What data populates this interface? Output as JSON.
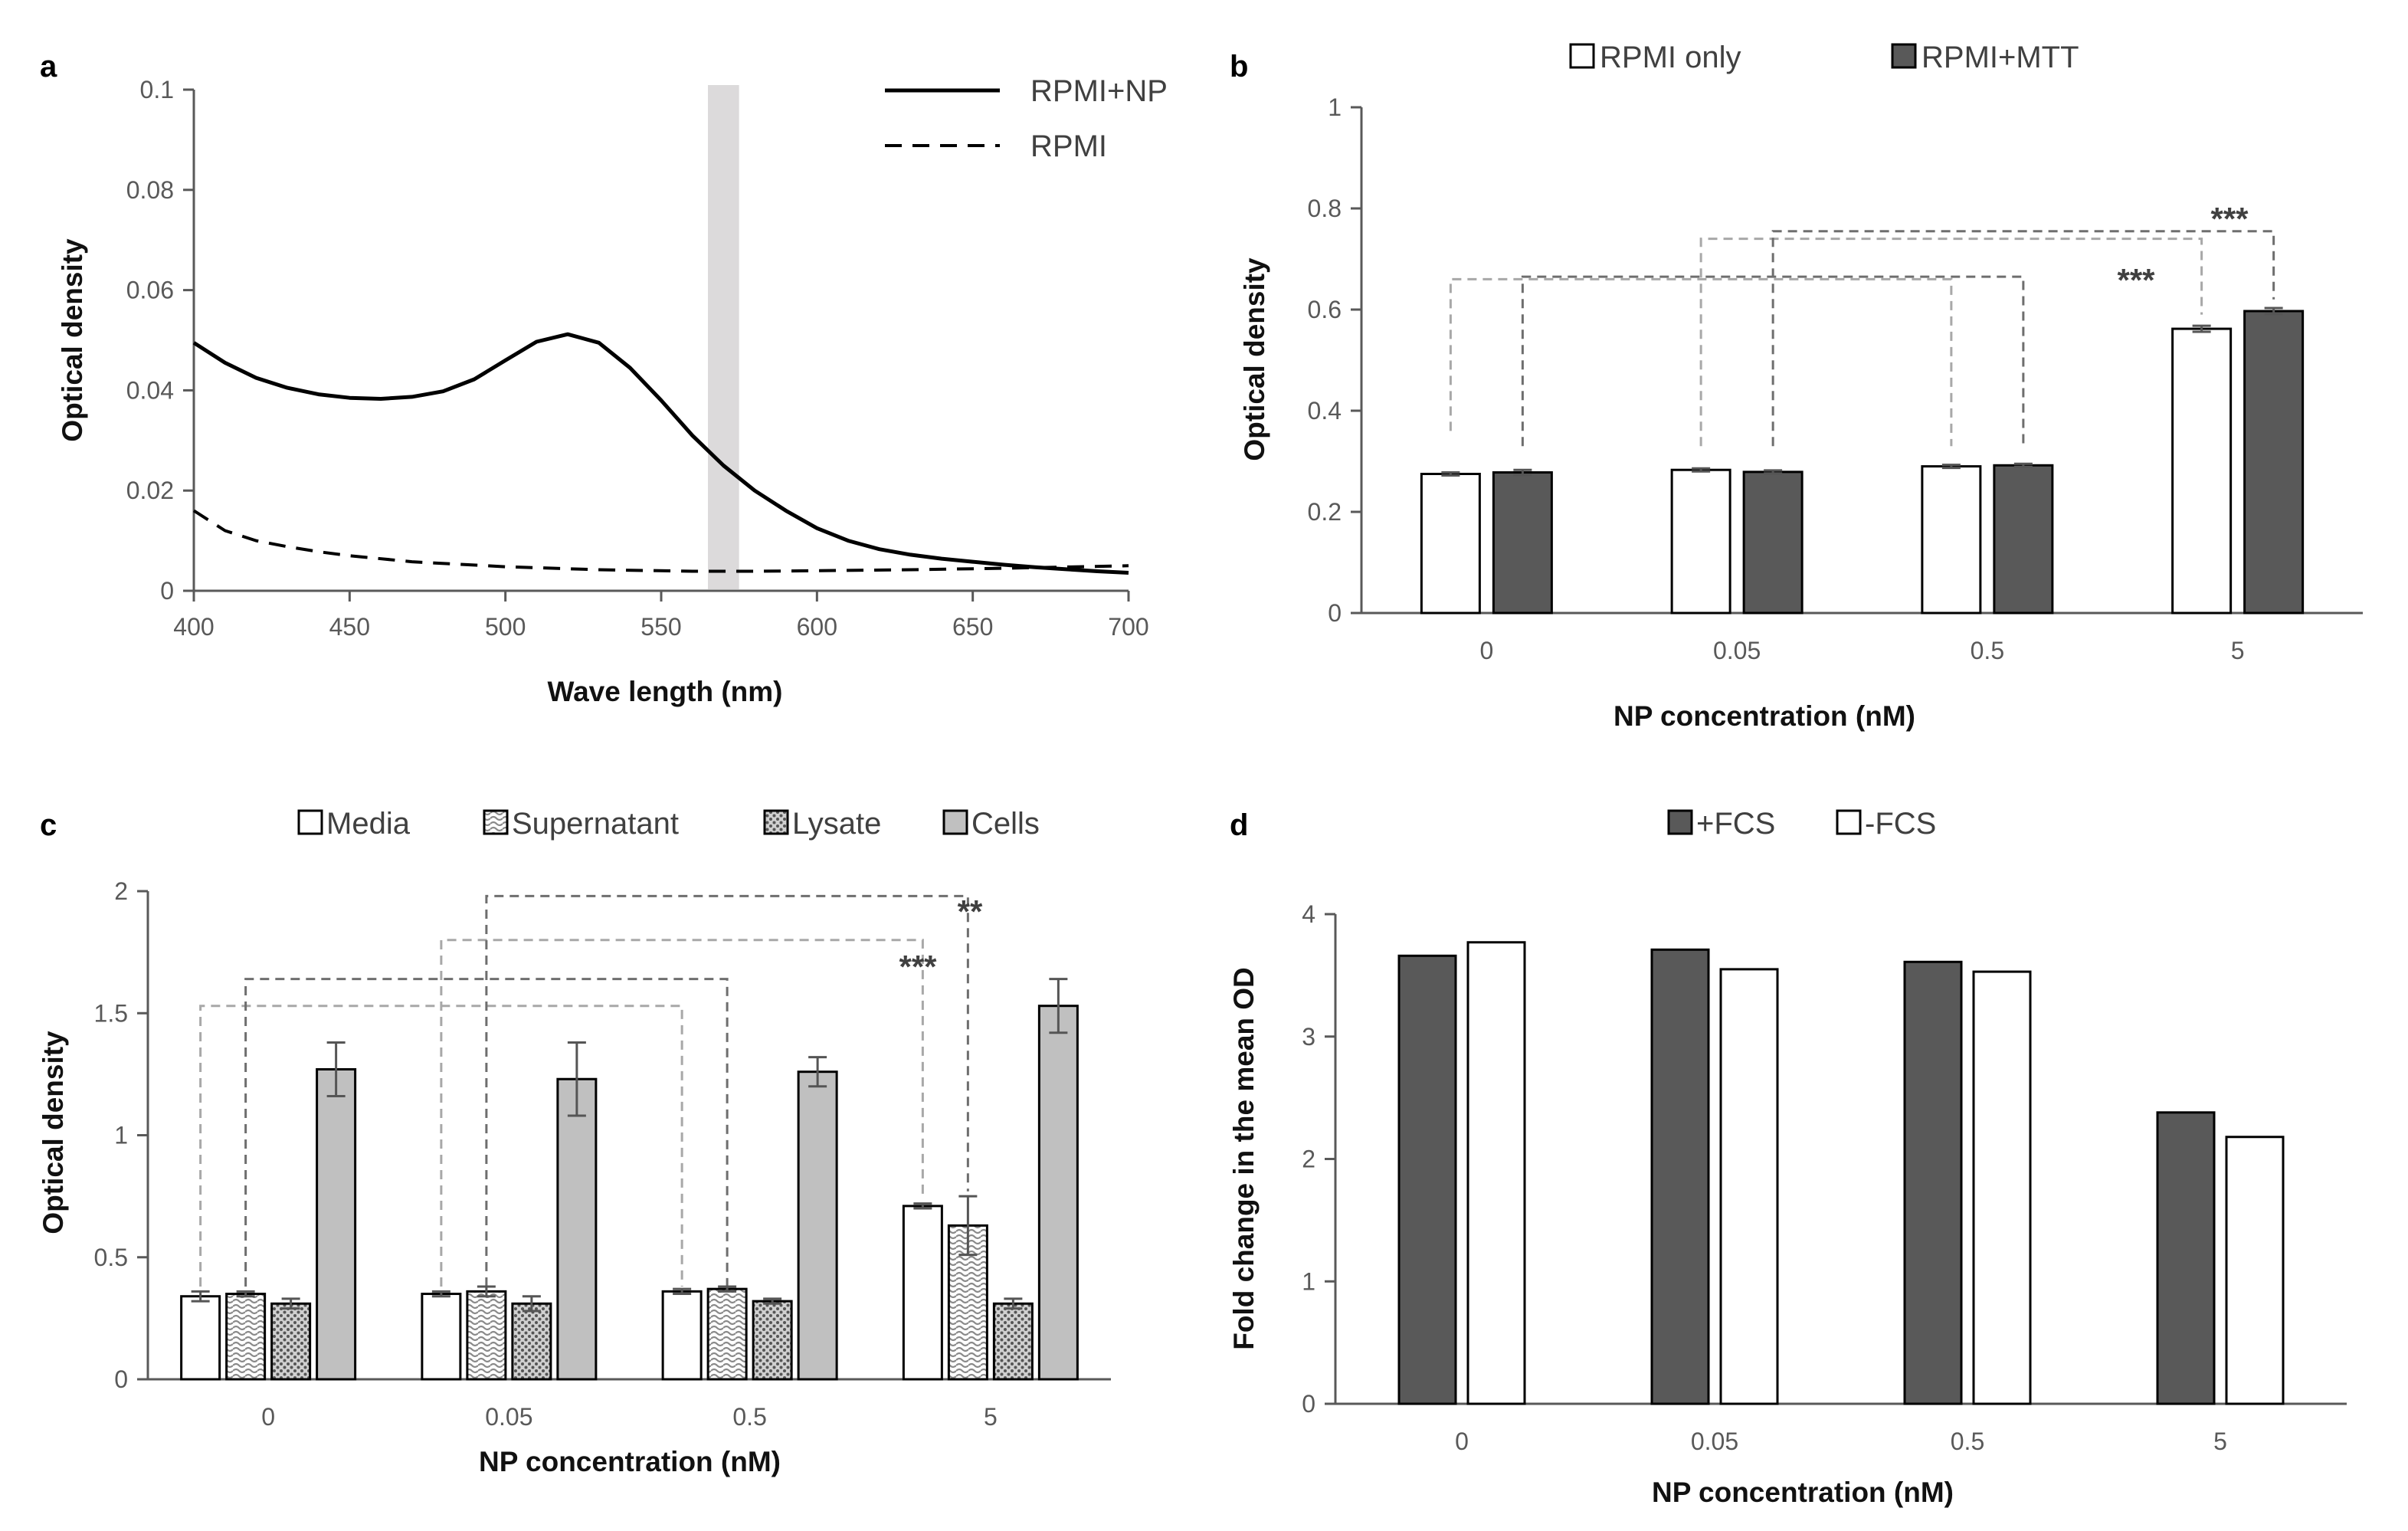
{
  "chart_data": [
    {
      "panel": "a",
      "type": "line",
      "xlabel": "Wave length (nm)",
      "ylabel": "Optical density",
      "xlim": [
        400,
        700
      ],
      "ylim": [
        0,
        0.1
      ],
      "xticks": [
        400,
        450,
        500,
        550,
        600,
        650,
        700
      ],
      "yticks": [
        0,
        0.02,
        0.04,
        0.06,
        0.08,
        0.1
      ],
      "highlight_band": [
        565,
        575
      ],
      "series": [
        {
          "name": "RPMI+NP",
          "style": "solid",
          "points": [
            [
              400,
              0.0495
            ],
            [
              410,
              0.0455
            ],
            [
              420,
              0.0425
            ],
            [
              430,
              0.0405
            ],
            [
              440,
              0.0392
            ],
            [
              450,
              0.0385
            ],
            [
              460,
              0.0383
            ],
            [
              470,
              0.0387
            ],
            [
              480,
              0.0398
            ],
            [
              490,
              0.0422
            ],
            [
              500,
              0.046
            ],
            [
              510,
              0.0497
            ],
            [
              520,
              0.0512
            ],
            [
              530,
              0.0495
            ],
            [
              540,
              0.0445
            ],
            [
              550,
              0.038
            ],
            [
              560,
              0.031
            ],
            [
              570,
              0.025
            ],
            [
              580,
              0.02
            ],
            [
              590,
              0.016
            ],
            [
              600,
              0.0125
            ],
            [
              610,
              0.01
            ],
            [
              620,
              0.0083
            ],
            [
              630,
              0.0072
            ],
            [
              640,
              0.0064
            ],
            [
              650,
              0.0058
            ],
            [
              660,
              0.0052
            ],
            [
              670,
              0.0047
            ],
            [
              680,
              0.0043
            ],
            [
              690,
              0.0039
            ],
            [
              700,
              0.0036
            ]
          ]
        },
        {
          "name": "RPMI",
          "style": "dashed",
          "points": [
            [
              400,
              0.016
            ],
            [
              410,
              0.012
            ],
            [
              420,
              0.01
            ],
            [
              430,
              0.0088
            ],
            [
              440,
              0.0078
            ],
            [
              450,
              0.007
            ],
            [
              470,
              0.0058
            ],
            [
              500,
              0.0048
            ],
            [
              530,
              0.0042
            ],
            [
              560,
              0.0039
            ],
            [
              580,
              0.0039
            ],
            [
              600,
              0.004
            ],
            [
              630,
              0.0042
            ],
            [
              660,
              0.0045
            ],
            [
              700,
              0.005
            ]
          ]
        }
      ]
    },
    {
      "panel": "b",
      "type": "bar",
      "xlabel": "NP concentration (nM)",
      "ylabel": "Optical density",
      "categories": [
        "0",
        "0.05",
        "0.5",
        "5"
      ],
      "ylim": [
        0,
        1
      ],
      "yticks": [
        0,
        0.2,
        0.4,
        0.6,
        0.8,
        1
      ],
      "series": [
        {
          "name": "RPMI only",
          "color": "#ffffff",
          "values": [
            0.275,
            0.283,
            0.29,
            0.562
          ],
          "errors": [
            0.003,
            0.003,
            0.003,
            0.006
          ]
        },
        {
          "name": "RPMI+MTT",
          "color": "#595959",
          "values": [
            0.278,
            0.279,
            0.292,
            0.597
          ],
          "errors": [
            0.005,
            0.003,
            0.003,
            0.006
          ]
        }
      ],
      "significance": [
        "***",
        "***"
      ]
    },
    {
      "panel": "c",
      "type": "bar",
      "xlabel": "NP concentration (nM)",
      "ylabel": "Optical density",
      "categories": [
        "0",
        "0.05",
        "0.5",
        "5"
      ],
      "ylim": [
        0,
        2
      ],
      "yticks": [
        0,
        0.5,
        1,
        1.5,
        2
      ],
      "series": [
        {
          "name": "Media",
          "pattern": "white",
          "values": [
            0.34,
            0.35,
            0.36,
            0.71
          ],
          "errors": [
            0.02,
            0.01,
            0.01,
            0.01
          ]
        },
        {
          "name": "Supernatant",
          "pattern": "waves",
          "values": [
            0.35,
            0.36,
            0.37,
            0.63
          ],
          "errors": [
            0.01,
            0.02,
            0.01,
            0.12
          ]
        },
        {
          "name": "Lysate",
          "pattern": "dots",
          "values": [
            0.31,
            0.31,
            0.32,
            0.31
          ],
          "errors": [
            0.02,
            0.03,
            0.01,
            0.02
          ]
        },
        {
          "name": "Cells",
          "pattern": "gray",
          "values": [
            1.27,
            1.23,
            1.26,
            1.53
          ],
          "errors": [
            0.11,
            0.15,
            0.06,
            0.11
          ]
        }
      ],
      "significance": [
        "***",
        "**"
      ]
    },
    {
      "panel": "d",
      "type": "bar",
      "xlabel": "NP concentration (nM)",
      "ylabel": "Fold change in the mean OD",
      "categories": [
        "0",
        "0.05",
        "0.5",
        "5"
      ],
      "ylim": [
        0,
        4
      ],
      "yticks": [
        0,
        1,
        2,
        3,
        4
      ],
      "series": [
        {
          "name": "+FCS",
          "color": "#595959",
          "values": [
            3.66,
            3.71,
            3.61,
            2.38
          ]
        },
        {
          "name": "-FCS",
          "color": "#ffffff",
          "values": [
            3.77,
            3.55,
            3.53,
            2.18
          ]
        }
      ]
    }
  ]
}
